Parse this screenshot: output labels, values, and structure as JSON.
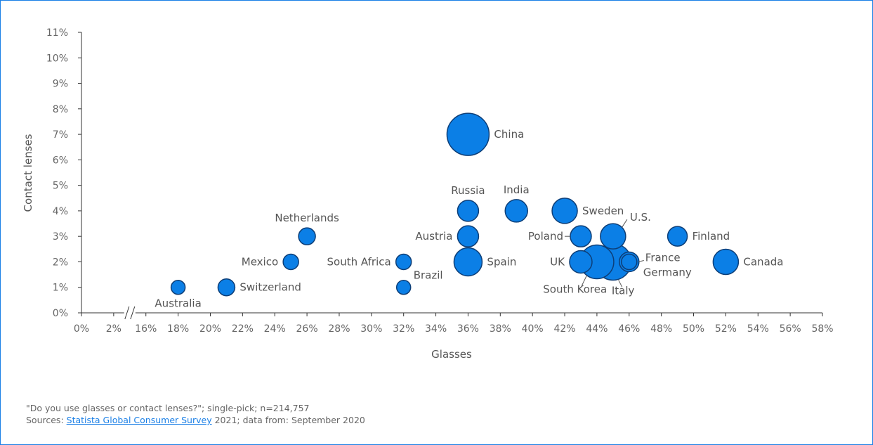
{
  "chart_data": {
    "type": "scatter",
    "subtype": "bubble",
    "xlabel": "Glasses",
    "ylabel": "Contact lenses",
    "x_tick_labels": [
      "0%",
      "2%",
      "16%",
      "18%",
      "20%",
      "22%",
      "24%",
      "26%",
      "28%",
      "30%",
      "32%",
      "34%",
      "36%",
      "38%",
      "40%",
      "42%",
      "44%",
      "46%",
      "48%",
      "50%",
      "52%",
      "54%",
      "56%",
      "58%"
    ],
    "x_axis_break": [
      2,
      16
    ],
    "y_tick_labels": [
      "0%",
      "1%",
      "2%",
      "3%",
      "4%",
      "5%",
      "6%",
      "7%",
      "8%",
      "9%",
      "10%",
      "11%"
    ],
    "ylim": [
      0,
      11
    ],
    "xlim": [
      0,
      58
    ],
    "bubble_color": "#0b7fe6",
    "bubble_stroke": "#0d3e77",
    "points": [
      {
        "name": "Australia",
        "x": 18,
        "y": 1,
        "size": 10,
        "label_position": "below"
      },
      {
        "name": "Switzerland",
        "x": 21,
        "y": 1,
        "size": 12,
        "label_position": "right"
      },
      {
        "name": "Mexico",
        "x": 25,
        "y": 2,
        "size": 11,
        "label_position": "left"
      },
      {
        "name": "Netherlands",
        "x": 26,
        "y": 3,
        "size": 12,
        "label_position": "above"
      },
      {
        "name": "South Africa",
        "x": 32,
        "y": 2,
        "size": 11,
        "label_position": "left"
      },
      {
        "name": "Brazil",
        "x": 32,
        "y": 1,
        "size": 10,
        "label_position": "upper-right"
      },
      {
        "name": "Russia",
        "x": 36,
        "y": 4,
        "size": 15,
        "label_position": "above"
      },
      {
        "name": "Austria",
        "x": 36,
        "y": 3,
        "size": 15,
        "label_position": "left"
      },
      {
        "name": "Spain",
        "x": 36,
        "y": 2,
        "size": 20,
        "label_position": "right"
      },
      {
        "name": "China",
        "x": 36,
        "y": 7,
        "size": 30,
        "label_position": "right"
      },
      {
        "name": "India",
        "x": 39,
        "y": 4,
        "size": 16,
        "label_position": "above"
      },
      {
        "name": "Sweden",
        "x": 42,
        "y": 4,
        "size": 18,
        "label_position": "right"
      },
      {
        "name": "Poland",
        "x": 43,
        "y": 3,
        "size": 15,
        "label_position": "left-leader"
      },
      {
        "name": "Italy",
        "x": 45,
        "y": 2,
        "size": 26,
        "label_position": "below-right"
      },
      {
        "name": "South Korea",
        "x": 44,
        "y": 2,
        "size": 24,
        "label_position": "below-left"
      },
      {
        "name": "UK",
        "x": 43,
        "y": 2,
        "size": 16,
        "label_position": "left"
      },
      {
        "name": "U.S.",
        "x": 45,
        "y": 3,
        "size": 18,
        "label_position": "upper-right"
      },
      {
        "name": "Germany",
        "x": 46,
        "y": 2,
        "size": 14,
        "label_position": "lower-right"
      },
      {
        "name": "France",
        "x": 46,
        "y": 2,
        "size": 11,
        "label_position": "right-leader"
      },
      {
        "name": "Finland",
        "x": 49,
        "y": 3,
        "size": 14,
        "label_position": "right"
      },
      {
        "name": "Canada",
        "x": 52,
        "y": 2,
        "size": 18,
        "label_position": "right"
      }
    ]
  },
  "footer": {
    "question": "\"Do you use glasses or contact lenses?\"; single-pick; n=214,757",
    "sources_prefix": "Sources: ",
    "source_link": "Statista Global Consumer Survey",
    "sources_suffix": " 2021; data from: September 2020"
  }
}
